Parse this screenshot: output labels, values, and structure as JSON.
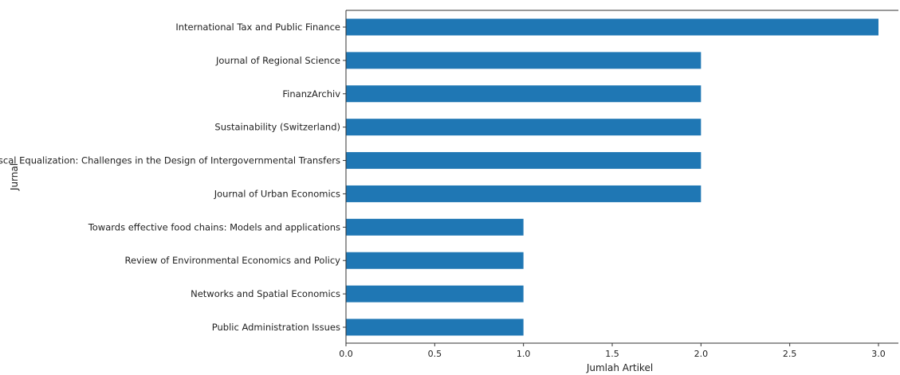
{
  "chart_data": {
    "type": "bar",
    "orientation": "horizontal",
    "title": "",
    "xlabel": "Jumlah Artikel",
    "ylabel": "Jurnal",
    "categories": [
      "International Tax and Public Finance",
      "Journal of Regional Science",
      "FinanzArchiv",
      "Sustainability (Switzerland)",
      "Fiscal Equalization: Challenges in the Design of Intergovernmental Transfers",
      "Journal of Urban Economics",
      "Towards effective food chains: Models and applications",
      "Review of Environmental Economics and Policy",
      "Networks and Spatial Economics",
      "Public Administration Issues"
    ],
    "values": [
      3,
      2,
      2,
      2,
      2,
      2,
      1,
      1,
      1,
      1
    ],
    "xlim": [
      0,
      3.1
    ],
    "xticks": [
      "0.0",
      "0.5",
      "1.0",
      "1.5",
      "2.0",
      "2.5",
      "3.0"
    ],
    "bar_color": "#1f77b4",
    "grid": false,
    "legend": "none"
  }
}
